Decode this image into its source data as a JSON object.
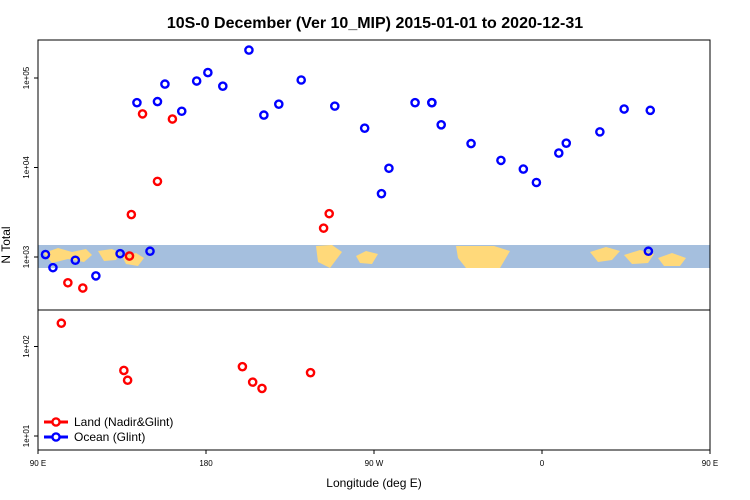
{
  "chart_data": {
    "type": "scatter",
    "title": "10S-0 December (Ver 10_MIP)   2015-01-01 to 2020-12-31",
    "xlabel": "Longitude (deg E)",
    "ylabel": "N Total",
    "xlim": [
      90,
      450
    ],
    "ylog": true,
    "ylim": [
      7.5,
      400000
    ],
    "x_ticks": [
      {
        "value": 90,
        "label": "90 E"
      },
      {
        "value": 180,
        "label": "180"
      },
      {
        "value": 270,
        "label": "90 W"
      },
      {
        "value": 360,
        "label": "0"
      },
      {
        "value": 450,
        "label": "90 E"
      }
    ],
    "y_ticks": [
      {
        "value": 10,
        "label": "1e+01"
      },
      {
        "value": 100,
        "label": "1e+02"
      },
      {
        "value": 1000,
        "label": "1e+03"
      },
      {
        "value": 10000,
        "label": "1e+04"
      },
      {
        "value": 100000,
        "label": "1e+05"
      }
    ],
    "background_map": "world map strip (land/ocean, 10S-0) spanning 90E to 90E",
    "legend_position": "bottom-left",
    "series": [
      {
        "name": "Land (Nadir&Glint)",
        "color": "#ff0000",
        "points": [
          [
            102.5,
            182
          ],
          [
            106,
            515
          ],
          [
            114,
            450
          ],
          [
            136,
            54
          ],
          [
            138,
            42
          ],
          [
            139,
            1025
          ],
          [
            140,
            2980
          ],
          [
            146,
            39700
          ],
          [
            154,
            7000
          ],
          [
            162,
            34800
          ],
          [
            199.5,
            59.5
          ],
          [
            205,
            40
          ],
          [
            210,
            34
          ],
          [
            236,
            51
          ],
          [
            243,
            2100
          ],
          [
            246,
            3050
          ]
        ]
      },
      {
        "name": "Ocean (Glint)",
        "color": "#0000ff",
        "points": [
          [
            94,
            1065
          ],
          [
            98,
            760
          ],
          [
            110,
            920
          ],
          [
            121,
            615
          ],
          [
            134,
            1090
          ],
          [
            143,
            53000
          ],
          [
            150,
            1160
          ],
          [
            154,
            54500
          ],
          [
            158,
            85500
          ],
          [
            167,
            42500
          ],
          [
            175,
            92500
          ],
          [
            181,
            115000
          ],
          [
            189,
            81000
          ],
          [
            203,
            205000
          ],
          [
            211,
            38500
          ],
          [
            219,
            51000
          ],
          [
            231,
            95000
          ],
          [
            249,
            48500
          ],
          [
            265,
            27500
          ],
          [
            274,
            5100
          ],
          [
            278,
            9800
          ],
          [
            292,
            53000
          ],
          [
            301,
            53000
          ],
          [
            301,
            53000
          ],
          [
            306,
            30000
          ],
          [
            322,
            18500
          ],
          [
            338,
            12000
          ],
          [
            350,
            9600
          ],
          [
            357,
            6800
          ],
          [
            369,
            14500
          ],
          [
            373,
            18700
          ],
          [
            391,
            25000
          ],
          [
            404,
            45000
          ],
          [
            417,
            1160
          ],
          [
            418,
            43500
          ]
        ]
      }
    ]
  }
}
